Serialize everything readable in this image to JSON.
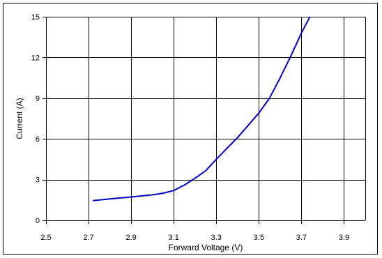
{
  "chart_data": {
    "type": "line",
    "title": "",
    "xlabel": "Forward Voltage (V)",
    "ylabel": "Current (A)",
    "xlim": [
      2.5,
      4.0
    ],
    "ylim": [
      0,
      15
    ],
    "x_ticks": [
      2.5,
      2.7,
      2.9,
      3.1,
      3.3,
      3.5,
      3.7,
      3.9
    ],
    "x_tick_labels": [
      "2.5",
      "2.7",
      "2.9",
      "3.1",
      "3.3",
      "3.5",
      "3.7",
      "3.9"
    ],
    "y_ticks": [
      0,
      3,
      6,
      9,
      12,
      15
    ],
    "y_tick_labels": [
      "0",
      "3",
      "6",
      "9",
      "12",
      "15"
    ],
    "grid": true,
    "legend": "none",
    "series": [
      {
        "color": "#0000cc",
        "x": [
          2.72,
          2.8,
          2.9,
          3.0,
          3.05,
          3.1,
          3.15,
          3.2,
          3.25,
          3.3,
          3.35,
          3.4,
          3.45,
          3.5,
          3.55,
          3.6,
          3.65,
          3.7,
          3.74
        ],
        "y": [
          1.45,
          1.58,
          1.72,
          1.88,
          2.0,
          2.2,
          2.6,
          3.1,
          3.65,
          4.5,
          5.3,
          6.1,
          7.0,
          7.9,
          9.0,
          10.5,
          12.1,
          13.8,
          15.0
        ]
      }
    ]
  }
}
